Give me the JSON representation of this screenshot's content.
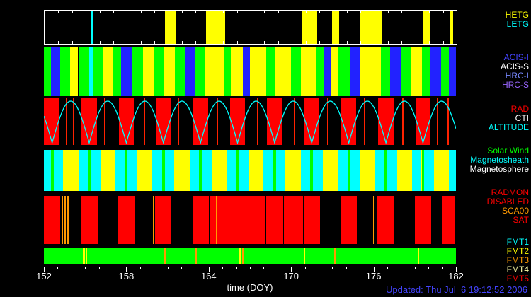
{
  "chart_data": {
    "type": "timeline",
    "updated": "Updated: Thu Jul  6 19:12:52 2006",
    "x_axis": {
      "label": "time (DOY)",
      "min": 152,
      "max": 182,
      "major_ticks": [
        152,
        158,
        164,
        170,
        176,
        182
      ],
      "minor_step": 1
    },
    "altitude_curve": {
      "label": "ALTITUDE",
      "color": "#00ffff",
      "period_days": 2.7,
      "first_perigee_doy": 149.9,
      "perigee_doys": [
        152.6,
        155.3,
        158.0,
        160.7,
        163.4,
        166.1,
        168.8,
        171.5,
        174.2,
        176.9,
        179.6
      ]
    },
    "bands": [
      {
        "id": "gratings",
        "background": "#000000",
        "labels": [
          {
            "text": "HETG",
            "color": "#ffff00"
          },
          {
            "text": "LETG",
            "color": "#00ffff"
          }
        ],
        "segments": [
          {
            "start": 155.35,
            "end": 155.55,
            "color": "#00ffff"
          },
          {
            "start": 160.75,
            "end": 161.55,
            "color": "#ffff00"
          },
          {
            "start": 163.75,
            "end": 165.15,
            "color": "#ffff00"
          },
          {
            "start": 170.7,
            "end": 171.85,
            "color": "#ffff00"
          },
          {
            "start": 172.95,
            "end": 173.45,
            "color": "#ffff00"
          },
          {
            "start": 175.0,
            "end": 176.55,
            "color": "#ffff00"
          },
          {
            "start": 179.6,
            "end": 180.05,
            "color": "#ffff00"
          },
          {
            "start": 181.55,
            "end": 181.75,
            "color": "#ffff00"
          }
        ]
      },
      {
        "id": "instruments",
        "background": "#000000",
        "labels": [
          {
            "text": "ACIS-I",
            "color": "#4444ff"
          },
          {
            "text": "ACIS-S",
            "color": "#ffffff"
          },
          {
            "text": "HRC-I",
            "color": "#7788ff"
          },
          {
            "text": "HRC-S",
            "color": "#9966ff"
          }
        ],
        "segments": [
          {
            "start": 152.0,
            "end": 152.5,
            "color": "#00ff00"
          },
          {
            "start": 152.5,
            "end": 153.2,
            "color": "#2222ff"
          },
          {
            "start": 153.2,
            "end": 153.9,
            "color": "#00ff00"
          },
          {
            "start": 153.9,
            "end": 154.5,
            "color": "#ffff00"
          },
          {
            "start": 154.5,
            "end": 155.3,
            "color": "#00ff00"
          },
          {
            "start": 155.3,
            "end": 155.55,
            "color": "#00ffff"
          },
          {
            "start": 155.55,
            "end": 156.3,
            "color": "#00ff00"
          },
          {
            "start": 156.3,
            "end": 157.0,
            "color": "#ffff00"
          },
          {
            "start": 157.0,
            "end": 157.6,
            "color": "#00ff00"
          },
          {
            "start": 157.6,
            "end": 158.4,
            "color": "#2222ff"
          },
          {
            "start": 158.4,
            "end": 159.2,
            "color": "#00ff00"
          },
          {
            "start": 159.2,
            "end": 160.0,
            "color": "#ffff00"
          },
          {
            "start": 160.0,
            "end": 160.75,
            "color": "#00ff00"
          },
          {
            "start": 160.75,
            "end": 161.55,
            "color": "#ffff00"
          },
          {
            "start": 161.55,
            "end": 162.3,
            "color": "#00ff00"
          },
          {
            "start": 162.3,
            "end": 163.0,
            "color": "#2222ff"
          },
          {
            "start": 163.0,
            "end": 163.75,
            "color": "#00ff00"
          },
          {
            "start": 163.75,
            "end": 165.15,
            "color": "#ffff00"
          },
          {
            "start": 165.15,
            "end": 165.6,
            "color": "#00ff00"
          },
          {
            "start": 165.6,
            "end": 166.5,
            "color": "#ffff00"
          },
          {
            "start": 166.5,
            "end": 167.0,
            "color": "#2222ff"
          },
          {
            "start": 167.0,
            "end": 168.2,
            "color": "#ffff00"
          },
          {
            "start": 168.2,
            "end": 168.8,
            "color": "#00ff00"
          },
          {
            "start": 168.8,
            "end": 170.0,
            "color": "#ffff00"
          },
          {
            "start": 170.0,
            "end": 170.7,
            "color": "#00ff00"
          },
          {
            "start": 170.7,
            "end": 171.85,
            "color": "#ffff00"
          },
          {
            "start": 171.85,
            "end": 172.4,
            "color": "#00ff00"
          },
          {
            "start": 172.4,
            "end": 172.95,
            "color": "#2222ff"
          },
          {
            "start": 172.95,
            "end": 173.45,
            "color": "#ffff00"
          },
          {
            "start": 173.45,
            "end": 174.3,
            "color": "#00ff00"
          },
          {
            "start": 174.3,
            "end": 175.0,
            "color": "#2222ff"
          },
          {
            "start": 175.0,
            "end": 176.55,
            "color": "#ffff00"
          },
          {
            "start": 176.55,
            "end": 177.2,
            "color": "#00ff00"
          },
          {
            "start": 177.2,
            "end": 178.0,
            "color": "#2222ff"
          },
          {
            "start": 178.0,
            "end": 178.7,
            "color": "#00ff00"
          },
          {
            "start": 178.7,
            "end": 179.5,
            "color": "#ffff00"
          },
          {
            "start": 179.5,
            "end": 180.1,
            "color": "#00ff00"
          },
          {
            "start": 180.1,
            "end": 180.9,
            "color": "#2222ff"
          },
          {
            "start": 180.9,
            "end": 181.5,
            "color": "#00ff00"
          },
          {
            "start": 181.5,
            "end": 182.0,
            "color": "#2222ff"
          }
        ]
      },
      {
        "id": "radiation",
        "background": "#000000",
        "labels": [
          {
            "text": "RAD",
            "color": "#ff0000"
          },
          {
            "text": "CTI",
            "color": "#ffffff"
          },
          {
            "text": "ALTITUDE",
            "color": "#00ffff"
          }
        ],
        "segments": [
          {
            "start": 152.0,
            "end": 153.15,
            "color": "#ff0000"
          },
          {
            "start": 154.75,
            "end": 155.85,
            "color": "#ff0000"
          },
          {
            "start": 157.45,
            "end": 158.55,
            "color": "#ff0000"
          },
          {
            "start": 160.15,
            "end": 161.25,
            "color": "#ff0000"
          },
          {
            "start": 162.85,
            "end": 163.95,
            "color": "#ff0000"
          },
          {
            "start": 165.55,
            "end": 166.65,
            "color": "#ff0000"
          },
          {
            "start": 168.25,
            "end": 169.35,
            "color": "#ff0000"
          },
          {
            "start": 170.95,
            "end": 172.05,
            "color": "#ff0000"
          },
          {
            "start": 173.65,
            "end": 174.75,
            "color": "#ff0000"
          },
          {
            "start": 176.35,
            "end": 177.45,
            "color": "#ff0000"
          },
          {
            "start": 179.05,
            "end": 180.15,
            "color": "#ff0000"
          },
          {
            "start": 153.6,
            "end": 153.67,
            "color": "#ff2200"
          },
          {
            "start": 154.1,
            "end": 154.17,
            "color": "#ff2200"
          },
          {
            "start": 156.4,
            "end": 156.47,
            "color": "#ff2200"
          },
          {
            "start": 159.3,
            "end": 159.37,
            "color": "#ff2200"
          },
          {
            "start": 161.8,
            "end": 161.87,
            "color": "#ff2200"
          },
          {
            "start": 164.6,
            "end": 164.67,
            "color": "#ff2200"
          },
          {
            "start": 167.5,
            "end": 167.57,
            "color": "#ff2200"
          },
          {
            "start": 170.2,
            "end": 170.27,
            "color": "#ff2200"
          },
          {
            "start": 172.6,
            "end": 172.67,
            "color": "#ff2200"
          },
          {
            "start": 175.3,
            "end": 175.37,
            "color": "#ff2200"
          },
          {
            "start": 178.1,
            "end": 178.17,
            "color": "#ff2200"
          },
          {
            "start": 180.6,
            "end": 180.67,
            "color": "#ff2200"
          },
          {
            "start": 181.4,
            "end": 181.47,
            "color": "#ff2200"
          }
        ]
      },
      {
        "id": "regions",
        "background": "#ffff00",
        "labels": [
          {
            "text": "Solar Wind",
            "color": "#00ff00"
          },
          {
            "text": "Magnetosheath",
            "color": "#00ffff"
          },
          {
            "text": "Magnetosphere",
            "color": "#ffffff"
          }
        ],
        "segments": [
          {
            "start": 152.0,
            "end": 152.5,
            "color": "#00ffff"
          },
          {
            "start": 152.5,
            "end": 152.7,
            "color": "#00ff00"
          },
          {
            "start": 152.7,
            "end": 153.4,
            "color": "#00ffff"
          },
          {
            "start": 154.5,
            "end": 155.2,
            "color": "#00ffff"
          },
          {
            "start": 155.2,
            "end": 155.4,
            "color": "#00ff00"
          },
          {
            "start": 155.4,
            "end": 156.1,
            "color": "#00ffff"
          },
          {
            "start": 157.2,
            "end": 157.9,
            "color": "#00ffff"
          },
          {
            "start": 157.9,
            "end": 158.1,
            "color": "#00ff00"
          },
          {
            "start": 158.1,
            "end": 158.8,
            "color": "#00ffff"
          },
          {
            "start": 159.9,
            "end": 160.6,
            "color": "#00ffff"
          },
          {
            "start": 160.6,
            "end": 160.8,
            "color": "#00ff00"
          },
          {
            "start": 160.8,
            "end": 161.5,
            "color": "#00ffff"
          },
          {
            "start": 162.6,
            "end": 163.3,
            "color": "#00ffff"
          },
          {
            "start": 163.3,
            "end": 163.5,
            "color": "#00ff00"
          },
          {
            "start": 163.5,
            "end": 164.2,
            "color": "#00ffff"
          },
          {
            "start": 165.3,
            "end": 166.0,
            "color": "#00ffff"
          },
          {
            "start": 166.0,
            "end": 166.2,
            "color": "#00ff00"
          },
          {
            "start": 166.2,
            "end": 166.9,
            "color": "#00ffff"
          },
          {
            "start": 168.0,
            "end": 168.7,
            "color": "#00ffff"
          },
          {
            "start": 168.7,
            "end": 168.9,
            "color": "#00ff00"
          },
          {
            "start": 168.9,
            "end": 169.6,
            "color": "#00ffff"
          },
          {
            "start": 170.7,
            "end": 171.4,
            "color": "#00ffff"
          },
          {
            "start": 171.4,
            "end": 171.6,
            "color": "#00ff00"
          },
          {
            "start": 171.6,
            "end": 172.3,
            "color": "#00ffff"
          },
          {
            "start": 173.4,
            "end": 174.1,
            "color": "#00ffff"
          },
          {
            "start": 174.1,
            "end": 174.3,
            "color": "#00ff00"
          },
          {
            "start": 174.3,
            "end": 175.0,
            "color": "#00ffff"
          },
          {
            "start": 176.1,
            "end": 176.8,
            "color": "#00ffff"
          },
          {
            "start": 176.8,
            "end": 177.0,
            "color": "#00ff00"
          },
          {
            "start": 177.0,
            "end": 177.7,
            "color": "#00ffff"
          },
          {
            "start": 178.8,
            "end": 179.5,
            "color": "#00ffff"
          },
          {
            "start": 179.5,
            "end": 179.7,
            "color": "#00ff00"
          },
          {
            "start": 179.7,
            "end": 180.4,
            "color": "#00ffff"
          },
          {
            "start": 181.5,
            "end": 182.0,
            "color": "#00ffff"
          }
        ]
      },
      {
        "id": "radmon",
        "background": "#000000",
        "labels": [
          {
            "text": "RADMON",
            "color": "#ff0000"
          },
          {
            "text": "DISABLED",
            "color": "#ff0000"
          },
          {
            "text": "SCA00",
            "color": "#ff9900"
          },
          {
            "text": "SAT",
            "color": "#ff0000"
          }
        ],
        "segments": [
          {
            "start": 152.0,
            "end": 153.2,
            "color": "#ff0000"
          },
          {
            "start": 154.7,
            "end": 155.9,
            "color": "#ff0000"
          },
          {
            "start": 157.4,
            "end": 158.6,
            "color": "#ff0000"
          },
          {
            "start": 160.1,
            "end": 161.3,
            "color": "#ff0000"
          },
          {
            "start": 162.8,
            "end": 164.0,
            "color": "#ff0000"
          },
          {
            "start": 164.05,
            "end": 165.45,
            "color": "#ff0000"
          },
          {
            "start": 165.5,
            "end": 166.7,
            "color": "#ff0000"
          },
          {
            "start": 166.75,
            "end": 168.15,
            "color": "#ff0000"
          },
          {
            "start": 168.2,
            "end": 169.4,
            "color": "#ff0000"
          },
          {
            "start": 169.45,
            "end": 170.85,
            "color": "#ff0000"
          },
          {
            "start": 170.9,
            "end": 172.1,
            "color": "#ff0000"
          },
          {
            "start": 173.6,
            "end": 174.8,
            "color": "#ff0000"
          },
          {
            "start": 176.3,
            "end": 177.5,
            "color": "#ff0000"
          },
          {
            "start": 179.0,
            "end": 180.2,
            "color": "#ff0000"
          },
          {
            "start": 181.0,
            "end": 181.9,
            "color": "#ff0000"
          },
          {
            "start": 153.3,
            "end": 153.38,
            "color": "#ff9900"
          },
          {
            "start": 153.5,
            "end": 153.58,
            "color": "#ff9900"
          },
          {
            "start": 153.7,
            "end": 153.78,
            "color": "#ff9900"
          },
          {
            "start": 159.95,
            "end": 160.03,
            "color": "#ff9900"
          },
          {
            "start": 164.5,
            "end": 164.58,
            "color": "#ff9900"
          },
          {
            "start": 175.95,
            "end": 176.03,
            "color": "#ff9900"
          }
        ]
      },
      {
        "id": "fmt",
        "background": "#00ff00",
        "labels": [
          {
            "text": "FMT1",
            "color": "#00ffff"
          },
          {
            "text": "FMT2",
            "color": "#ffff00"
          },
          {
            "text": "FMT3",
            "color": "#ff9900"
          },
          {
            "text": "FMT4",
            "color": "#ffffaa"
          },
          {
            "text": "FMT5",
            "color": "#ff0000"
          }
        ],
        "segments": [
          {
            "start": 154.85,
            "end": 155.0,
            "color": "#ffff00"
          },
          {
            "start": 155.08,
            "end": 155.15,
            "color": "#ffff00"
          },
          {
            "start": 160.75,
            "end": 160.85,
            "color": "#ff9900"
          },
          {
            "start": 163.05,
            "end": 163.12,
            "color": "#ff9900"
          },
          {
            "start": 166.25,
            "end": 166.35,
            "color": "#ffff00"
          },
          {
            "start": 166.45,
            "end": 166.52,
            "color": "#ff9900"
          },
          {
            "start": 170.9,
            "end": 171.0,
            "color": "#ffff00"
          },
          {
            "start": 173.15,
            "end": 173.25,
            "color": "#ff9900"
          },
          {
            "start": 179.25,
            "end": 179.35,
            "color": "#ffff00"
          }
        ]
      }
    ]
  }
}
